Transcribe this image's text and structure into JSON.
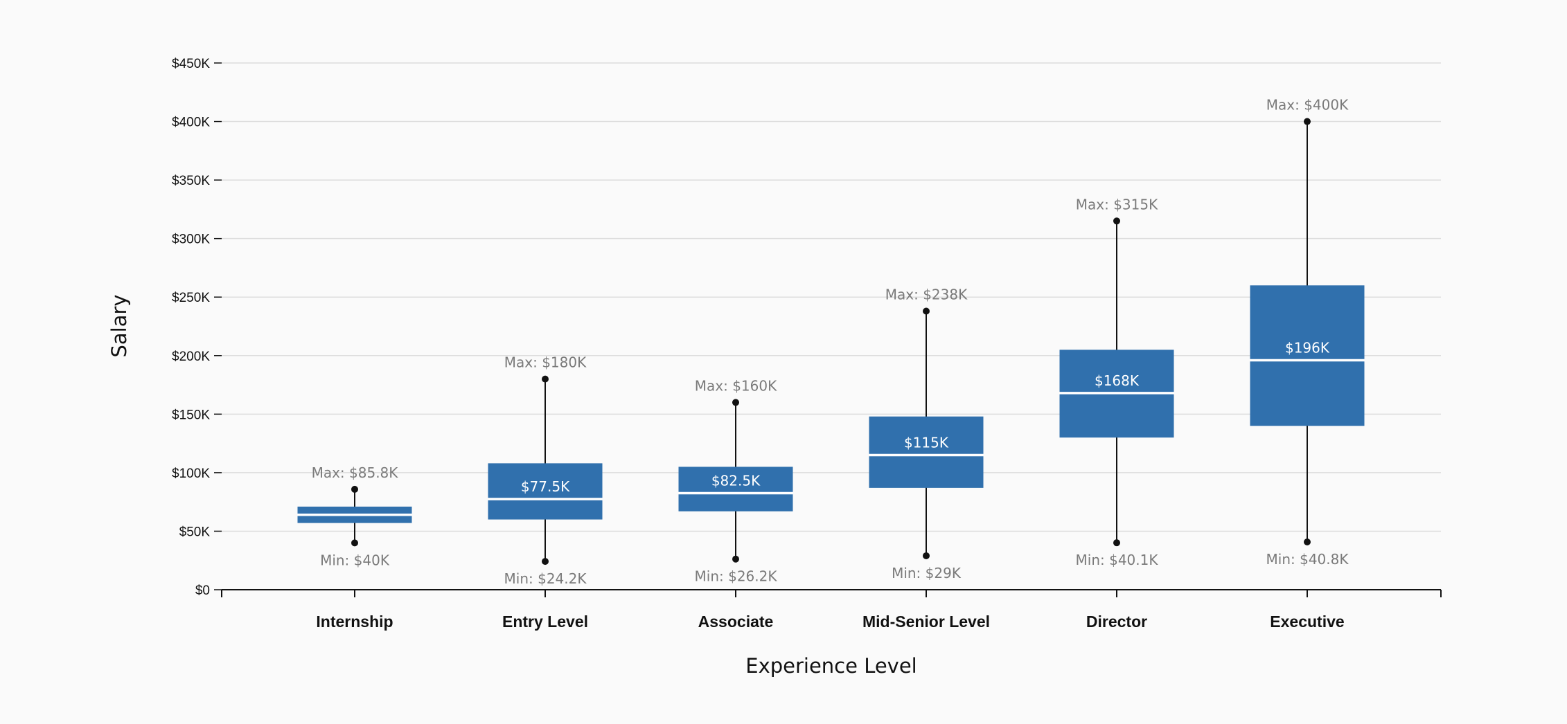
{
  "chart_data": {
    "type": "boxplot",
    "xlabel": "Experience Level",
    "ylabel": "Salary",
    "ylim": [
      0,
      450000
    ],
    "yticks": [
      0,
      50000,
      100000,
      150000,
      200000,
      250000,
      300000,
      350000,
      400000,
      450000
    ],
    "ytick_labels": [
      "$0",
      "$50K",
      "$100K",
      "$150K",
      "$200K",
      "$250K",
      "$300K",
      "$350K",
      "$400K",
      "$450K"
    ],
    "grid": true,
    "colors": {
      "box": "#3070ad",
      "median": "#ffffff",
      "whisker": "#111111",
      "grid": "#dddddd",
      "annotation": "#7a7a7a",
      "background": "#fafafa"
    },
    "categories": [
      "Internship",
      "Entry Level",
      "Associate",
      "Mid-Senior Level",
      "Director",
      "Executive"
    ],
    "boxes": [
      {
        "category": "Internship",
        "min": 40000,
        "q1": 57000,
        "median": 64000,
        "q3": 71000,
        "max": 85800,
        "median_label": "",
        "min_label": "Min: $40K",
        "max_label": "Max: $85.8K"
      },
      {
        "category": "Entry Level",
        "min": 24200,
        "q1": 60000,
        "median": 77500,
        "q3": 108000,
        "max": 180000,
        "median_label": "$77.5K",
        "min_label": "Min: $24.2K",
        "max_label": "Max: $180K"
      },
      {
        "category": "Associate",
        "min": 26200,
        "q1": 67000,
        "median": 82500,
        "q3": 105000,
        "max": 160000,
        "median_label": "$82.5K",
        "min_label": "Min: $26.2K",
        "max_label": "Max: $160K"
      },
      {
        "category": "Mid-Senior Level",
        "min": 29000,
        "q1": 87000,
        "median": 115000,
        "q3": 148000,
        "max": 238000,
        "median_label": "$115K",
        "min_label": "Min: $29K",
        "max_label": "Max: $238K"
      },
      {
        "category": "Director",
        "min": 40100,
        "q1": 130000,
        "median": 168000,
        "q3": 205000,
        "max": 315000,
        "median_label": "$168K",
        "min_label": "Min: $40.1K",
        "max_label": "Max: $315K"
      },
      {
        "category": "Executive",
        "min": 40800,
        "q1": 140000,
        "median": 196000,
        "q3": 260000,
        "max": 400000,
        "median_label": "$196K",
        "min_label": "Min: $40.8K",
        "max_label": "Max: $400K"
      }
    ]
  }
}
